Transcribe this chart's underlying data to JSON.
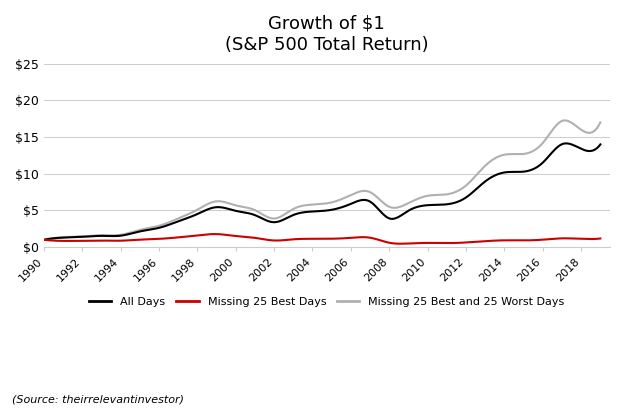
{
  "title_line1": "Growth of $1",
  "title_line2": "(S&P 500 Total Return)",
  "xlabel": "",
  "ylabel": "",
  "ylim": [
    0,
    25
  ],
  "yticks": [
    0,
    5,
    10,
    15,
    20,
    25
  ],
  "ytick_labels": [
    "$0",
    "$5",
    "$10",
    "$15",
    "$20",
    "$25"
  ],
  "xtick_years": [
    1990,
    1992,
    1994,
    1996,
    1998,
    2000,
    2002,
    2004,
    2006,
    2008,
    2010,
    2012,
    2014,
    2016,
    2018
  ],
  "line_colors": {
    "all_days": "#000000",
    "missing_best": "#cc0000",
    "missing_best_worst": "#b0b0b0"
  },
  "legend_labels": [
    "All Days",
    "Missing 25 Best Days",
    "Missing 25 Best and 25 Worst Days"
  ],
  "source_text": "(Source: theirrelevantinvestor)",
  "background_color": "#ffffff",
  "grid_color": "#cccccc",
  "years": [
    1990,
    1991,
    1992,
    1993,
    1994,
    1995,
    1996,
    1997,
    1998,
    1999,
    2000,
    2001,
    2002,
    2003,
    2004,
    2005,
    2006,
    2007,
    2008,
    2009,
    2010,
    2011,
    2012,
    2013,
    2014,
    2015,
    2016,
    2017,
    2018,
    2019
  ],
  "all_days": [
    1.0,
    1.3,
    1.4,
    1.54,
    1.56,
    2.14,
    2.63,
    3.51,
    4.51,
    5.45,
    4.95,
    4.37,
    3.4,
    4.38,
    4.86,
    5.09,
    5.9,
    6.21,
    3.92,
    4.97,
    5.72,
    5.84,
    6.77,
    8.96,
    10.18,
    10.29,
    11.52,
    14.03,
    13.4,
    14.0
  ],
  "missing_best": [
    1.0,
    0.85,
    0.87,
    0.9,
    0.88,
    1.02,
    1.13,
    1.33,
    1.6,
    1.78,
    1.52,
    1.27,
    0.91,
    1.07,
    1.14,
    1.15,
    1.27,
    1.29,
    0.6,
    0.5,
    0.58,
    0.55,
    0.64,
    0.82,
    0.93,
    0.92,
    1.02,
    1.2,
    1.13,
    1.18
  ],
  "missing_best_worst": [
    1.0,
    1.35,
    1.47,
    1.63,
    1.68,
    2.35,
    2.91,
    3.9,
    5.1,
    6.25,
    5.7,
    5.05,
    3.9,
    5.2,
    5.8,
    6.1,
    7.1,
    7.5,
    5.5,
    6.0,
    7.0,
    7.2,
    8.4,
    11.1,
    12.6,
    12.7,
    14.2,
    17.2,
    16.0,
    17.0
  ]
}
